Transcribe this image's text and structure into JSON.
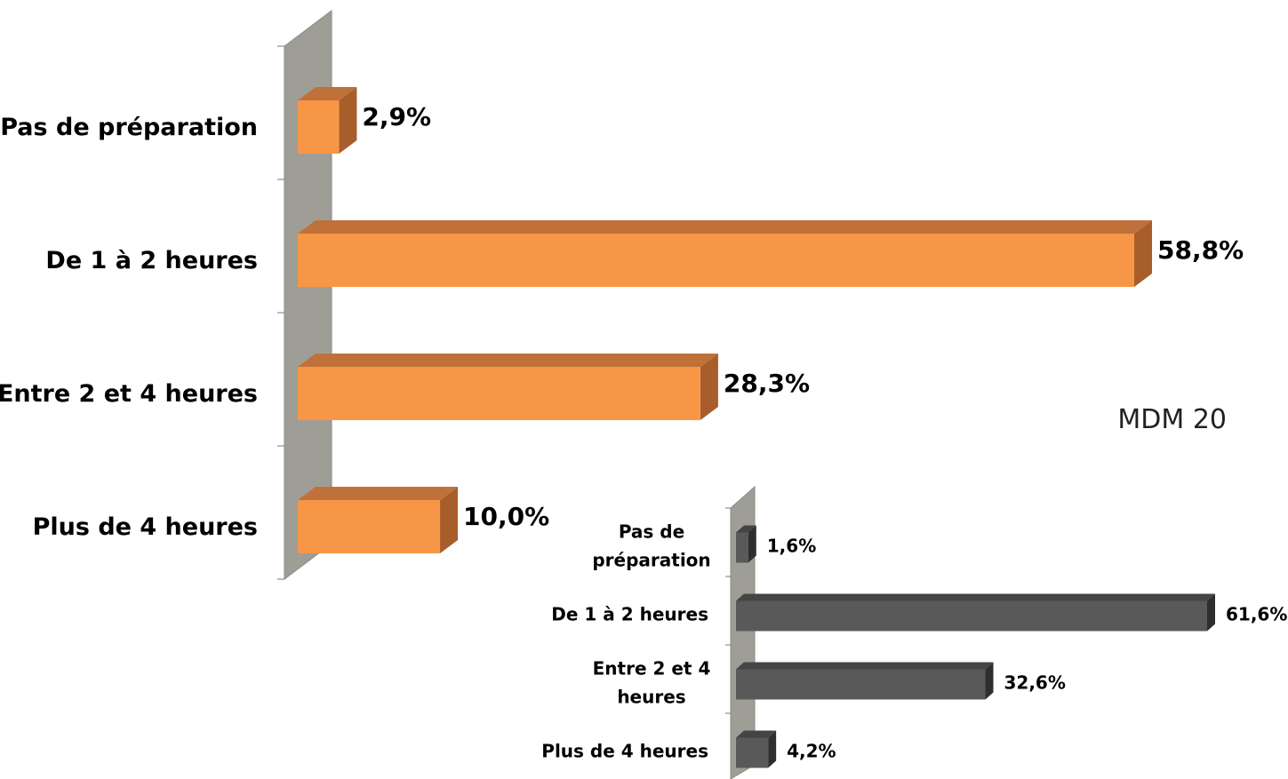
{
  "chart_data": [
    {
      "type": "bar",
      "orientation": "horizontal",
      "style": "3d",
      "categories": [
        "Pas de préparation",
        "De 1  à 2 heures",
        "Entre 2 et 4 heures",
        "Plus de 4 heures"
      ],
      "values": [
        2.9,
        58.8,
        28.3,
        10.0
      ],
      "value_labels": [
        "2,9%",
        "58,8%",
        "28,3%",
        "10,0%"
      ],
      "unit": "%",
      "xlim": [
        0,
        60
      ],
      "grid": false,
      "legend": "none",
      "colors": {
        "front": "#F79646",
        "top": "#C0713A",
        "side": "#A85E2B",
        "wall": "#9E9E96"
      }
    },
    {
      "type": "bar",
      "orientation": "horizontal",
      "style": "3d",
      "categories": [
        [
          "Pas de",
          "préparation"
        ],
        [
          "De 1 à 2 heures"
        ],
        [
          "Entre 2 et 4",
          "heures"
        ],
        [
          "Plus de 4 heures"
        ]
      ],
      "values": [
        1.6,
        61.6,
        32.6,
        4.2
      ],
      "value_labels": [
        "1,6%",
        "61,6%",
        "32,6%",
        "4,2%"
      ],
      "unit": "%",
      "xlim": [
        0,
        62
      ],
      "grid": false,
      "legend": "none",
      "colors": {
        "front": "#595959",
        "top": "#454545",
        "side": "#2E2E2E",
        "wall": "#9E9E96"
      }
    }
  ],
  "annotation": "MDM 20"
}
